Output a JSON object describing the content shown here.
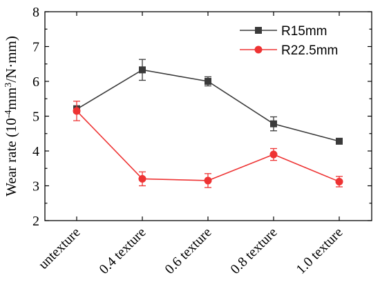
{
  "chart_data": {
    "type": "line",
    "categories": [
      "untexture",
      "0.4 texture",
      "0.6 texture",
      "0.8 texture",
      "1.0 texture"
    ],
    "ylim": [
      2,
      8
    ],
    "yticks": [
      2,
      3,
      4,
      5,
      6,
      7,
      8
    ],
    "ylabel_prefix": "Wear rate (10",
    "ylabel_exp1": "-4",
    "ylabel_mid": "mm",
    "ylabel_exp2": "3",
    "ylabel_suffix": "/N·mm)",
    "legend_position": "top-right",
    "grid": false,
    "series": [
      {
        "name": "R15mm",
        "color": "#3a3a3a",
        "marker": "square",
        "values": [
          5.2,
          6.33,
          6.0,
          4.78,
          4.28
        ],
        "errors": [
          0.1,
          0.3,
          0.13,
          0.2,
          0.07
        ]
      },
      {
        "name": "R22.5mm",
        "color": "#ee3333",
        "marker": "circle",
        "values": [
          5.15,
          3.2,
          3.15,
          3.9,
          3.12
        ],
        "errors": [
          0.28,
          0.2,
          0.2,
          0.17,
          0.15
        ]
      }
    ]
  }
}
